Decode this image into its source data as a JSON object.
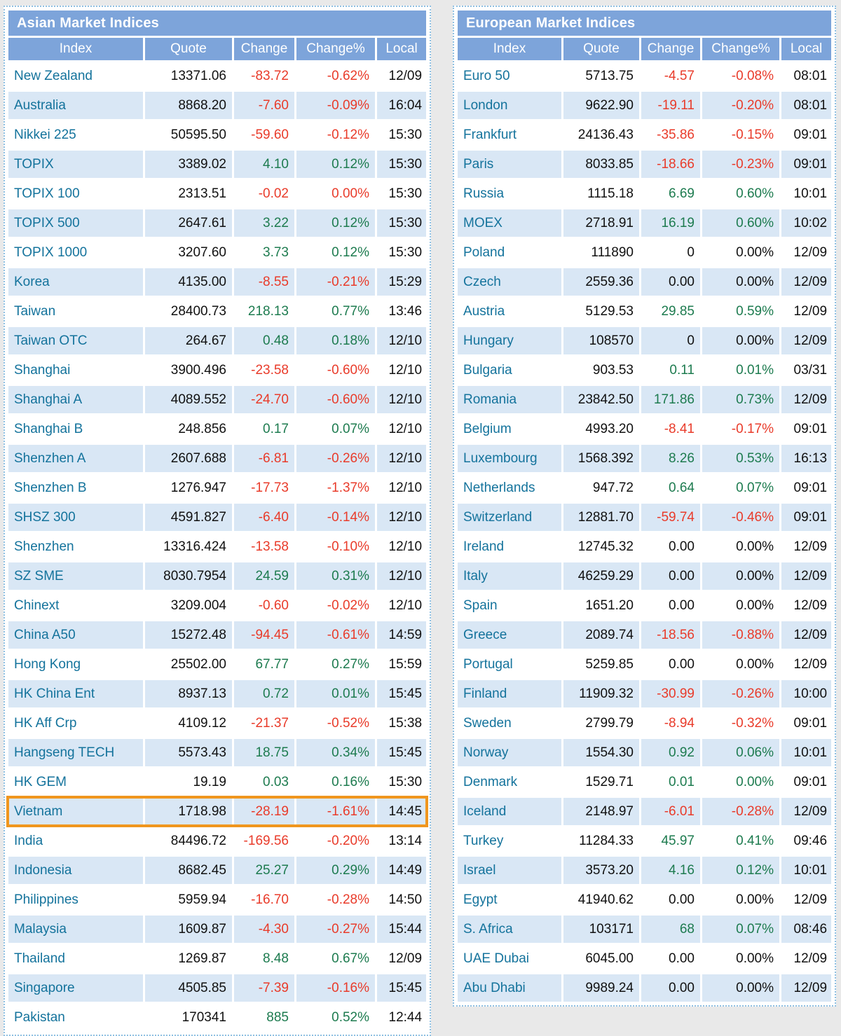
{
  "colors": {
    "page-bg": "#e9e9e9",
    "panel-border": "#8fc0e2",
    "header-bg": "#7da4da",
    "header-text": "#ffffff",
    "row-bg": "#ffffff",
    "row-alt-bg": "#d9e7f5",
    "index-link": "#14739c",
    "up": "#1d7b4f",
    "down": "#e93b2a",
    "flat": "#111111",
    "highlight": "#f0961e"
  },
  "columns": [
    "Index",
    "Quote",
    "Change",
    "Change%",
    "Local"
  ],
  "tables": [
    {
      "title": "Asian Market Indices",
      "rows": [
        {
          "index": "New Zealand",
          "quote": "13371.06",
          "change": "-83.72",
          "change_pct": "-0.62%",
          "local": "12/09",
          "dir": "down"
        },
        {
          "index": "Australia",
          "quote": "8868.20",
          "change": "-7.60",
          "change_pct": "-0.09%",
          "local": "16:04",
          "dir": "down"
        },
        {
          "index": "Nikkei 225",
          "quote": "50595.50",
          "change": "-59.60",
          "change_pct": "-0.12%",
          "local": "15:30",
          "dir": "down"
        },
        {
          "index": "TOPIX",
          "quote": "3389.02",
          "change": "4.10",
          "change_pct": "0.12%",
          "local": "15:30",
          "dir": "up"
        },
        {
          "index": "TOPIX 100",
          "quote": "2313.51",
          "change": "-0.02",
          "change_pct": "0.00%",
          "local": "15:30",
          "dir": "down"
        },
        {
          "index": "TOPIX 500",
          "quote": "2647.61",
          "change": "3.22",
          "change_pct": "0.12%",
          "local": "15:30",
          "dir": "up"
        },
        {
          "index": "TOPIX 1000",
          "quote": "3207.60",
          "change": "3.73",
          "change_pct": "0.12%",
          "local": "15:30",
          "dir": "up"
        },
        {
          "index": "Korea",
          "quote": "4135.00",
          "change": "-8.55",
          "change_pct": "-0.21%",
          "local": "15:29",
          "dir": "down"
        },
        {
          "index": "Taiwan",
          "quote": "28400.73",
          "change": "218.13",
          "change_pct": "0.77%",
          "local": "13:46",
          "dir": "up"
        },
        {
          "index": "Taiwan OTC",
          "quote": "264.67",
          "change": "0.48",
          "change_pct": "0.18%",
          "local": "12/10",
          "dir": "up"
        },
        {
          "index": "Shanghai",
          "quote": "3900.496",
          "change": "-23.58",
          "change_pct": "-0.60%",
          "local": "12/10",
          "dir": "down"
        },
        {
          "index": "Shanghai A",
          "quote": "4089.552",
          "change": "-24.70",
          "change_pct": "-0.60%",
          "local": "12/10",
          "dir": "down"
        },
        {
          "index": "Shanghai B",
          "quote": "248.856",
          "change": "0.17",
          "change_pct": "0.07%",
          "local": "12/10",
          "dir": "up"
        },
        {
          "index": "Shenzhen A",
          "quote": "2607.688",
          "change": "-6.81",
          "change_pct": "-0.26%",
          "local": "12/10",
          "dir": "down"
        },
        {
          "index": "Shenzhen B",
          "quote": "1276.947",
          "change": "-17.73",
          "change_pct": "-1.37%",
          "local": "12/10",
          "dir": "down"
        },
        {
          "index": "SHSZ 300",
          "quote": "4591.827",
          "change": "-6.40",
          "change_pct": "-0.14%",
          "local": "12/10",
          "dir": "down"
        },
        {
          "index": "Shenzhen",
          "quote": "13316.424",
          "change": "-13.58",
          "change_pct": "-0.10%",
          "local": "12/10",
          "dir": "down"
        },
        {
          "index": "SZ SME",
          "quote": "8030.7954",
          "change": "24.59",
          "change_pct": "0.31%",
          "local": "12/10",
          "dir": "up"
        },
        {
          "index": "Chinext",
          "quote": "3209.004",
          "change": "-0.60",
          "change_pct": "-0.02%",
          "local": "12/10",
          "dir": "down"
        },
        {
          "index": "China A50",
          "quote": "15272.48",
          "change": "-94.45",
          "change_pct": "-0.61%",
          "local": "14:59",
          "dir": "down"
        },
        {
          "index": "Hong Kong",
          "quote": "25502.00",
          "change": "67.77",
          "change_pct": "0.27%",
          "local": "15:59",
          "dir": "up"
        },
        {
          "index": "HK China Ent",
          "quote": "8937.13",
          "change": "0.72",
          "change_pct": "0.01%",
          "local": "15:45",
          "dir": "up"
        },
        {
          "index": "HK Aff Crp",
          "quote": "4109.12",
          "change": "-21.37",
          "change_pct": "-0.52%",
          "local": "15:38",
          "dir": "down"
        },
        {
          "index": "Hangseng TECH",
          "quote": "5573.43",
          "change": "18.75",
          "change_pct": "0.34%",
          "local": "15:45",
          "dir": "up"
        },
        {
          "index": "HK GEM",
          "quote": "19.19",
          "change": "0.03",
          "change_pct": "0.16%",
          "local": "15:30",
          "dir": "up"
        },
        {
          "index": "Vietnam",
          "quote": "1718.98",
          "change": "-28.19",
          "change_pct": "-1.61%",
          "local": "14:45",
          "dir": "down",
          "highlight": true
        },
        {
          "index": "India",
          "quote": "84496.72",
          "change": "-169.56",
          "change_pct": "-0.20%",
          "local": "13:14",
          "dir": "down"
        },
        {
          "index": "Indonesia",
          "quote": "8682.45",
          "change": "25.27",
          "change_pct": "0.29%",
          "local": "14:49",
          "dir": "up"
        },
        {
          "index": "Philippines",
          "quote": "5959.94",
          "change": "-16.70",
          "change_pct": "-0.28%",
          "local": "14:50",
          "dir": "down"
        },
        {
          "index": "Malaysia",
          "quote": "1609.87",
          "change": "-4.30",
          "change_pct": "-0.27%",
          "local": "15:44",
          "dir": "down"
        },
        {
          "index": "Thailand",
          "quote": "1269.87",
          "change": "8.48",
          "change_pct": "0.67%",
          "local": "12/09",
          "dir": "up"
        },
        {
          "index": "Singapore",
          "quote": "4505.85",
          "change": "-7.39",
          "change_pct": "-0.16%",
          "local": "15:45",
          "dir": "down"
        },
        {
          "index": "Pakistan",
          "quote": "170341",
          "change": "885",
          "change_pct": "0.52%",
          "local": "12:44",
          "dir": "up"
        }
      ]
    },
    {
      "title": "European Market Indices",
      "rows": [
        {
          "index": "Euro 50",
          "quote": "5713.75",
          "change": "-4.57",
          "change_pct": "-0.08%",
          "local": "08:01",
          "dir": "down"
        },
        {
          "index": "London",
          "quote": "9622.90",
          "change": "-19.11",
          "change_pct": "-0.20%",
          "local": "08:01",
          "dir": "down"
        },
        {
          "index": "Frankfurt",
          "quote": "24136.43",
          "change": "-35.86",
          "change_pct": "-0.15%",
          "local": "09:01",
          "dir": "down"
        },
        {
          "index": "Paris",
          "quote": "8033.85",
          "change": "-18.66",
          "change_pct": "-0.23%",
          "local": "09:01",
          "dir": "down"
        },
        {
          "index": "Russia",
          "quote": "1115.18",
          "change": "6.69",
          "change_pct": "0.60%",
          "local": "10:01",
          "dir": "up"
        },
        {
          "index": "MOEX",
          "quote": "2718.91",
          "change": "16.19",
          "change_pct": "0.60%",
          "local": "10:02",
          "dir": "up"
        },
        {
          "index": "Poland",
          "quote": "111890",
          "change": "0",
          "change_pct": "0.00%",
          "local": "12/09",
          "dir": "flat"
        },
        {
          "index": "Czech",
          "quote": "2559.36",
          "change": "0.00",
          "change_pct": "0.00%",
          "local": "12/09",
          "dir": "flat"
        },
        {
          "index": "Austria",
          "quote": "5129.53",
          "change": "29.85",
          "change_pct": "0.59%",
          "local": "12/09",
          "dir": "up"
        },
        {
          "index": "Hungary",
          "quote": "108570",
          "change": "0",
          "change_pct": "0.00%",
          "local": "12/09",
          "dir": "flat"
        },
        {
          "index": "Bulgaria",
          "quote": "903.53",
          "change": "0.11",
          "change_pct": "0.01%",
          "local": "03/31",
          "dir": "up"
        },
        {
          "index": "Romania",
          "quote": "23842.50",
          "change": "171.86",
          "change_pct": "0.73%",
          "local": "12/09",
          "dir": "up"
        },
        {
          "index": "Belgium",
          "quote": "4993.20",
          "change": "-8.41",
          "change_pct": "-0.17%",
          "local": "09:01",
          "dir": "down"
        },
        {
          "index": "Luxembourg",
          "quote": "1568.392",
          "change": "8.26",
          "change_pct": "0.53%",
          "local": "16:13",
          "dir": "up"
        },
        {
          "index": "Netherlands",
          "quote": "947.72",
          "change": "0.64",
          "change_pct": "0.07%",
          "local": "09:01",
          "dir": "up"
        },
        {
          "index": "Switzerland",
          "quote": "12881.70",
          "change": "-59.74",
          "change_pct": "-0.46%",
          "local": "09:01",
          "dir": "down"
        },
        {
          "index": "Ireland",
          "quote": "12745.32",
          "change": "0.00",
          "change_pct": "0.00%",
          "local": "12/09",
          "dir": "flat"
        },
        {
          "index": "Italy",
          "quote": "46259.29",
          "change": "0.00",
          "change_pct": "0.00%",
          "local": "12/09",
          "dir": "flat"
        },
        {
          "index": "Spain",
          "quote": "1651.20",
          "change": "0.00",
          "change_pct": "0.00%",
          "local": "12/09",
          "dir": "flat"
        },
        {
          "index": "Greece",
          "quote": "2089.74",
          "change": "-18.56",
          "change_pct": "-0.88%",
          "local": "12/09",
          "dir": "down"
        },
        {
          "index": "Portugal",
          "quote": "5259.85",
          "change": "0.00",
          "change_pct": "0.00%",
          "local": "12/09",
          "dir": "flat"
        },
        {
          "index": "Finland",
          "quote": "11909.32",
          "change": "-30.99",
          "change_pct": "-0.26%",
          "local": "10:00",
          "dir": "down"
        },
        {
          "index": "Sweden",
          "quote": "2799.79",
          "change": "-8.94",
          "change_pct": "-0.32%",
          "local": "09:01",
          "dir": "down"
        },
        {
          "index": "Norway",
          "quote": "1554.30",
          "change": "0.92",
          "change_pct": "0.06%",
          "local": "10:01",
          "dir": "up"
        },
        {
          "index": "Denmark",
          "quote": "1529.71",
          "change": "0.01",
          "change_pct": "0.00%",
          "local": "09:01",
          "dir": "up"
        },
        {
          "index": "Iceland",
          "quote": "2148.97",
          "change": "-6.01",
          "change_pct": "-0.28%",
          "local": "12/09",
          "dir": "down"
        },
        {
          "index": "Turkey",
          "quote": "11284.33",
          "change": "45.97",
          "change_pct": "0.41%",
          "local": "09:46",
          "dir": "up"
        },
        {
          "index": "Israel",
          "quote": "3573.20",
          "change": "4.16",
          "change_pct": "0.12%",
          "local": "10:01",
          "dir": "up"
        },
        {
          "index": "Egypt",
          "quote": "41940.62",
          "change": "0.00",
          "change_pct": "0.00%",
          "local": "12/09",
          "dir": "flat"
        },
        {
          "index": "S. Africa",
          "quote": "103171",
          "change": "68",
          "change_pct": "0.07%",
          "local": "08:46",
          "dir": "up"
        },
        {
          "index": "UAE Dubai",
          "quote": "6045.00",
          "change": "0.00",
          "change_pct": "0.00%",
          "local": "12/09",
          "dir": "flat"
        },
        {
          "index": "Abu Dhabi",
          "quote": "9989.24",
          "change": "0.00",
          "change_pct": "0.00%",
          "local": "12/09",
          "dir": "flat"
        }
      ]
    }
  ]
}
